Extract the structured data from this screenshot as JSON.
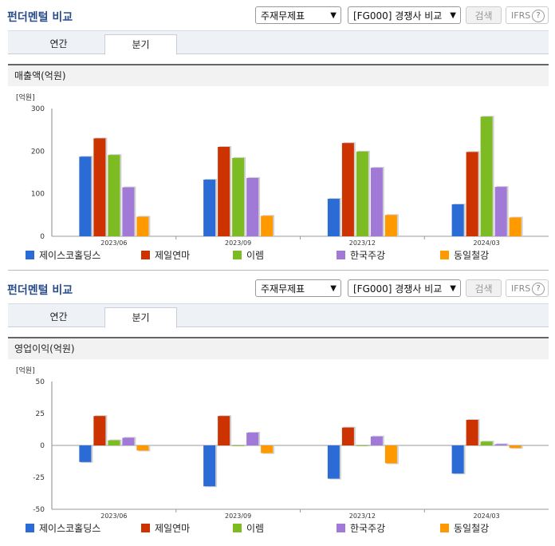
{
  "sections": [
    {
      "title": "펀더멘털 비교",
      "select1": "주재무제표",
      "select2": "[FG000] 경쟁사 비교",
      "search": "검색",
      "ifrs": "IFRS",
      "ifrs_help": "?",
      "tabs": [
        {
          "label": "연간",
          "active": false
        },
        {
          "label": "분기",
          "active": true
        }
      ],
      "panel_label": "매출액(억원)"
    },
    {
      "title": "펀더멘털 비교",
      "select1": "주재무제표",
      "select2": "[FG000] 경쟁사 비교",
      "search": "검색",
      "ifrs": "IFRS",
      "ifrs_help": "?",
      "tabs": [
        {
          "label": "연간",
          "active": false
        },
        {
          "label": "분기",
          "active": true
        }
      ],
      "panel_label": "영업이익(억원)"
    }
  ],
  "colors": {
    "제이스코홀딩스": "#2b6bd6",
    "제일연마": "#cc3300",
    "이렘": "#7dbb22",
    "한국주강": "#a07ad6",
    "동일철강": "#ff9900"
  },
  "chart_data": [
    {
      "type": "bar",
      "unit_label": "[억원]",
      "categories": [
        "2023/06",
        "2023/09",
        "2023/12",
        "2024/03"
      ],
      "ylim": [
        0,
        300
      ],
      "yticks": [
        0,
        100,
        200,
        300
      ],
      "series": [
        {
          "name": "제이스코홀딩스",
          "values": [
            187,
            133,
            88,
            75
          ]
        },
        {
          "name": "제일연마",
          "values": [
            230,
            210,
            219,
            198
          ]
        },
        {
          "name": "이렘",
          "values": [
            191,
            184,
            199,
            281
          ]
        },
        {
          "name": "한국주강",
          "values": [
            115,
            137,
            161,
            116
          ]
        },
        {
          "name": "동일철강",
          "values": [
            46,
            48,
            50,
            44
          ]
        }
      ],
      "legend_position": "bottom"
    },
    {
      "type": "bar",
      "unit_label": "[억원]",
      "categories": [
        "2023/06",
        "2023/09",
        "2023/12",
        "2024/03"
      ],
      "ylim": [
        -50,
        50
      ],
      "yticks": [
        50,
        25,
        0,
        -25,
        -50
      ],
      "series": [
        {
          "name": "제이스코홀딩스",
          "values": [
            -13,
            -32,
            -26,
            -22
          ]
        },
        {
          "name": "제일연마",
          "values": [
            23,
            23,
            14,
            20
          ]
        },
        {
          "name": "이렘",
          "values": [
            4,
            0,
            0,
            3
          ]
        },
        {
          "name": "한국주강",
          "values": [
            6,
            10,
            7,
            1
          ]
        },
        {
          "name": "동일철강",
          "values": [
            -4,
            -6,
            -14,
            -2
          ]
        }
      ],
      "legend_position": "bottom"
    }
  ]
}
